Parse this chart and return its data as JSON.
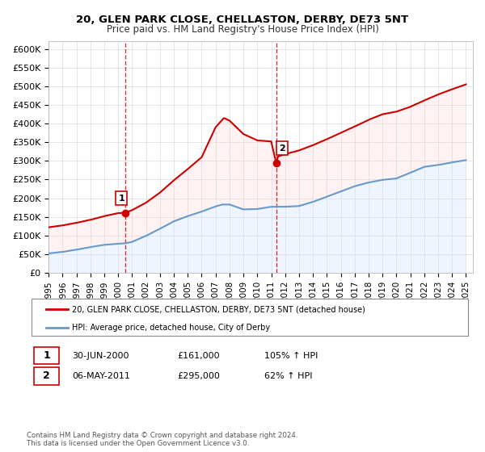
{
  "title1": "20, GLEN PARK CLOSE, CHELLASTON, DERBY, DE73 5NT",
  "title2": "Price paid vs. HM Land Registry's House Price Index (HPI)",
  "ylabel_ticks": [
    "£0",
    "£50K",
    "£100K",
    "£150K",
    "£200K",
    "£250K",
    "£300K",
    "£350K",
    "£400K",
    "£450K",
    "£500K",
    "£550K",
    "£600K"
  ],
  "ytick_values": [
    0,
    50000,
    100000,
    150000,
    200000,
    250000,
    300000,
    350000,
    400000,
    450000,
    500000,
    550000,
    600000
  ],
  "ylim": [
    0,
    620000
  ],
  "xlim_start": 1995.0,
  "xlim_end": 2025.5,
  "sale1_x": 2000.5,
  "sale1_y": 161000,
  "sale2_x": 2011.35,
  "sale2_y": 295000,
  "legend_line1": "20, GLEN PARK CLOSE, CHELLASTON, DERBY, DE73 5NT (detached house)",
  "legend_line2": "HPI: Average price, detached house, City of Derby",
  "annotation1_label": "1",
  "annotation1_date": "30-JUN-2000",
  "annotation1_price": "£161,000",
  "annotation1_hpi": "105% ↑ HPI",
  "annotation2_label": "2",
  "annotation2_date": "06-MAY-2011",
  "annotation2_price": "£295,000",
  "annotation2_hpi": "62% ↑ HPI",
  "footer1": "Contains HM Land Registry data © Crown copyright and database right 2024.",
  "footer2": "This data is licensed under the Open Government Licence v3.0.",
  "sale_color": "#cc0000",
  "hpi_color": "#6699cc",
  "fill_color_sale": "#ffcccc",
  "fill_color_hpi": "#cce0ff",
  "vline_color": "#cc0000",
  "bg_color": "#ffffff",
  "grid_color": "#cccccc"
}
